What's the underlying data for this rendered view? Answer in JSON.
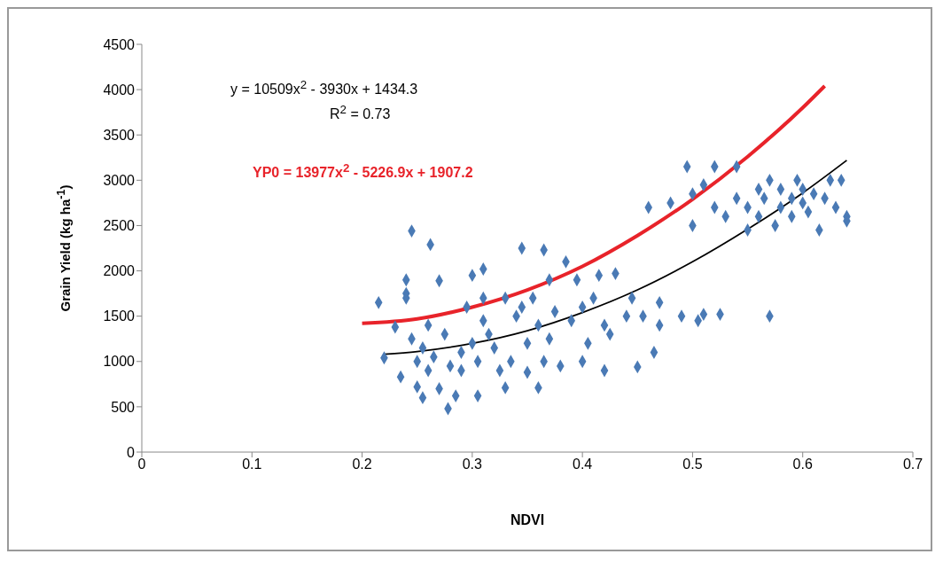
{
  "chart_data": {
    "type": "scatter",
    "xlabel": "NDVI",
    "ylabel": "Grain Yield (kg ha$^{-1}$)",
    "xlim": [
      0,
      0.7
    ],
    "xticks": [
      0,
      0.1,
      0.2,
      0.3,
      0.4,
      0.5,
      0.6,
      0.7
    ],
    "ylim": [
      0,
      4500
    ],
    "yticks": [
      0,
      500,
      1000,
      1500,
      2000,
      2500,
      3000,
      3500,
      4000,
      4500
    ],
    "grid": false,
    "annotations": [
      "y = 10509x$^{2}$ - 3930x + 1434.3",
      "R$^{2}$ = 0.73",
      "YP0 = 13977x$^{2}$ - 5226.9x + 1907.2"
    ],
    "series": [
      {
        "marker": "diamond",
        "color": "#4a7ab5",
        "x": [
          0.215,
          0.22,
          0.23,
          0.235,
          0.24,
          0.24,
          0.24,
          0.245,
          0.245,
          0.25,
          0.25,
          0.255,
          0.255,
          0.26,
          0.26,
          0.262,
          0.265,
          0.27,
          0.27,
          0.275,
          0.278,
          0.28,
          0.285,
          0.29,
          0.29,
          0.295,
          0.3,
          0.3,
          0.305,
          0.305,
          0.31,
          0.31,
          0.31,
          0.315,
          0.32,
          0.325,
          0.33,
          0.33,
          0.335,
          0.34,
          0.345,
          0.345,
          0.35,
          0.35,
          0.355,
          0.36,
          0.36,
          0.365,
          0.365,
          0.37,
          0.37,
          0.375,
          0.38,
          0.385,
          0.39,
          0.395,
          0.4,
          0.4,
          0.405,
          0.41,
          0.415,
          0.42,
          0.42,
          0.425,
          0.43,
          0.44,
          0.445,
          0.45,
          0.455,
          0.46,
          0.465,
          0.47,
          0.47,
          0.48,
          0.49,
          0.495,
          0.5,
          0.5,
          0.505,
          0.51,
          0.51,
          0.52,
          0.52,
          0.525,
          0.53,
          0.54,
          0.54,
          0.55,
          0.55,
          0.56,
          0.56,
          0.565,
          0.57,
          0.57,
          0.575,
          0.58,
          0.58,
          0.59,
          0.59,
          0.595,
          0.6,
          0.6,
          0.605,
          0.61,
          0.615,
          0.62,
          0.625,
          0.63,
          0.635,
          0.64,
          0.64
        ],
        "values": [
          1650,
          1040,
          1380,
          830,
          1900,
          1750,
          1700,
          2440,
          1250,
          720,
          1000,
          600,
          1150,
          900,
          1400,
          2290,
          1050,
          700,
          1890,
          1300,
          480,
          950,
          620,
          1100,
          900,
          1600,
          1950,
          1200,
          620,
          1000,
          2020,
          1700,
          1450,
          1300,
          1150,
          900,
          1700,
          710,
          1000,
          1500,
          2250,
          1600,
          1200,
          880,
          1700,
          710,
          1400,
          2230,
          1000,
          1900,
          1250,
          1550,
          950,
          2100,
          1450,
          1900,
          1000,
          1600,
          1200,
          1700,
          1950,
          1400,
          900,
          1300,
          1970,
          1500,
          1700,
          940,
          1500,
          2700,
          1100,
          1400,
          1650,
          2750,
          1500,
          3150,
          2500,
          2850,
          1450,
          1520,
          2950,
          2700,
          3150,
          1520,
          2600,
          3150,
          2800,
          2450,
          2700,
          2900,
          2600,
          2800,
          1500,
          3000,
          2500,
          2700,
          2900,
          2600,
          2800,
          3000,
          2750,
          2900,
          2650,
          2850,
          2450,
          2800,
          3000,
          2700,
          3000,
          2600,
          2550
        ]
      },
      {
        "type": "line",
        "marker": "none",
        "color": "#000000",
        "x": [
          0.22,
          0.25,
          0.3,
          0.35,
          0.4,
          0.45,
          0.5,
          0.55,
          0.6,
          0.64
        ],
        "values": [
          1080,
          1110,
          1200,
          1340,
          1540,
          1790,
          2100,
          2460,
          2860,
          3220
        ]
      },
      {
        "type": "line",
        "marker": "none",
        "color": "#e8232a",
        "x": [
          0.2,
          0.25,
          0.3,
          0.35,
          0.4,
          0.45,
          0.5,
          0.55,
          0.6,
          0.62
        ],
        "values": [
          1420,
          1470,
          1600,
          1790,
          2050,
          2390,
          2790,
          3260,
          3800,
          4040
        ]
      }
    ]
  }
}
